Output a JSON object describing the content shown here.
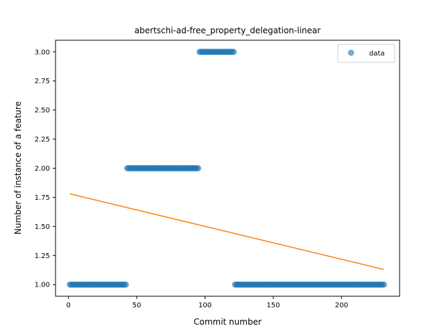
{
  "chart_data": {
    "type": "scatter",
    "title": "abertschi-ad-free_property_delegation-linear",
    "xlabel": "Commit number",
    "ylabel": "Number of instance of a feature",
    "xlim": [
      -9.5,
      242.5
    ],
    "ylim": [
      0.9,
      3.1
    ],
    "x_ticks": [
      0,
      50,
      100,
      150,
      200
    ],
    "x_tick_labels": [
      "0",
      "50",
      "100",
      "150",
      "200"
    ],
    "y_ticks": [
      1.0,
      1.25,
      1.5,
      1.75,
      2.0,
      2.25,
      2.5,
      2.75,
      3.0
    ],
    "y_tick_labels": [
      "1.00",
      "1.25",
      "1.50",
      "1.75",
      "2.00",
      "2.25",
      "2.50",
      "2.75",
      "3.00"
    ],
    "grid": false,
    "legend": {
      "position": "top-right",
      "entries": [
        "data"
      ]
    },
    "series": [
      {
        "name": "data",
        "kind": "scatter",
        "color": "#1f77b4",
        "segments": [
          {
            "x_start": 1,
            "x_end": 42,
            "y": 1
          },
          {
            "x_start": 43,
            "x_end": 95,
            "y": 2
          },
          {
            "x_start": 96,
            "x_end": 121,
            "y": 3
          },
          {
            "x_start": 122,
            "x_end": 231,
            "y": 1
          }
        ]
      },
      {
        "kind": "line",
        "color": "#ff7f0e",
        "x": [
          1,
          231
        ],
        "y": [
          1.78,
          1.13
        ]
      }
    ]
  }
}
